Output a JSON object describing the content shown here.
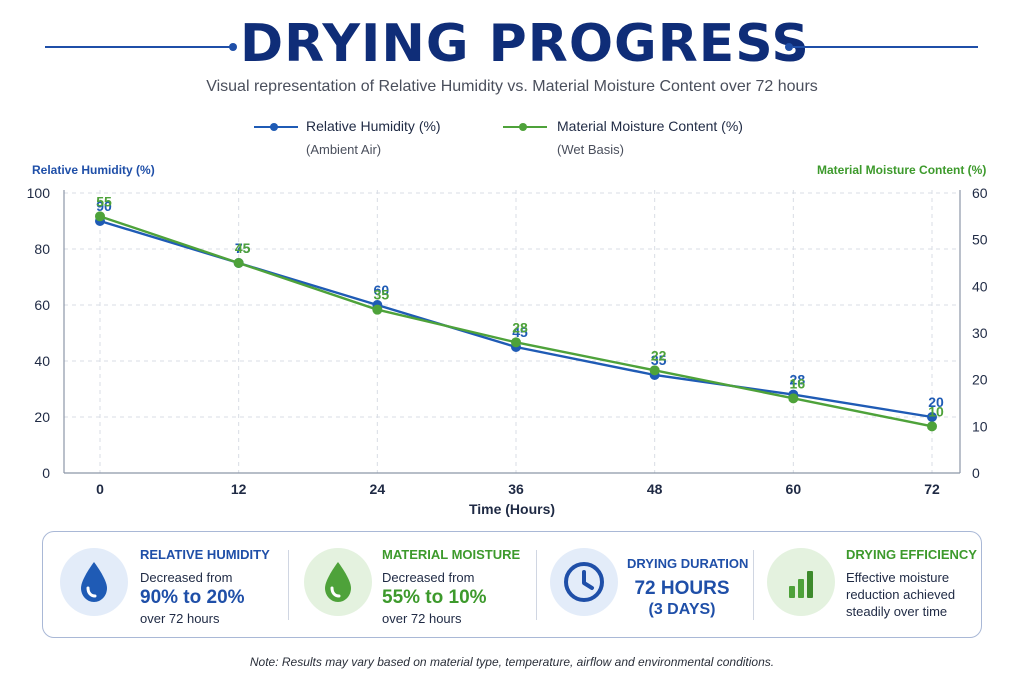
{
  "header": {
    "title": "DRYING PROGRESS",
    "subtitle": "Visual representation of Relative Humidity vs. Material Moisture Content over 72 hours"
  },
  "legend": {
    "humidity": {
      "name": "Relative Humidity (%)",
      "sub": "(Ambient Air)"
    },
    "moisture": {
      "name": "Material Moisture Content (%)",
      "sub": "(Wet Basis)"
    }
  },
  "colors": {
    "humidity": "#1f5bb5",
    "moisture": "#4ea23a",
    "title": "#0f2d78"
  },
  "chart_data": {
    "type": "line",
    "title": "DRYING PROGRESS",
    "subtitle": "Visual representation of Relative Humidity vs. Material Moisture Content over 72 hours",
    "xlabel": "Time (Hours)",
    "ylabel_left": "Relative Humidity (%)",
    "ylabel_right": "Material Moisture Content (%)",
    "x": [
      0,
      12,
      24,
      36,
      48,
      60,
      72
    ],
    "x_ticks": [
      "0",
      "12",
      "24",
      "36",
      "48",
      "60",
      "72"
    ],
    "ylim_left": [
      0,
      100
    ],
    "y_ticks_left": [
      "0",
      "20",
      "40",
      "60",
      "80",
      "100"
    ],
    "ylim_right": [
      0,
      60
    ],
    "y_ticks_right": [
      "0",
      "10",
      "20",
      "30",
      "40",
      "50",
      "60"
    ],
    "grid": true,
    "series": [
      {
        "name": "Relative Humidity (%)",
        "axis": "left",
        "values": [
          90,
          75,
          60,
          45,
          35,
          28,
          20
        ],
        "labels": [
          "90",
          "75",
          "60",
          "45",
          "35",
          "28",
          "20"
        ]
      },
      {
        "name": "Material Moisture Content (%)",
        "axis": "right",
        "values": [
          55,
          45,
          35,
          28,
          22,
          16,
          10
        ],
        "labels": [
          "55",
          "45",
          "35",
          "28",
          "22",
          "16",
          "10"
        ]
      }
    ]
  },
  "summary": {
    "humidity": {
      "heading": "RELATIVE HUMIDITY",
      "line1": "Decreased from",
      "big": "90% to 20%",
      "line2": "over 72 hours",
      "icon": "water-drop-icon"
    },
    "moisture": {
      "heading": "MATERIAL MOISTURE",
      "line1": "Decreased from",
      "big": "55% to 10%",
      "line2": "over 72 hours",
      "icon": "leaf-drop-icon"
    },
    "duration": {
      "heading": "DRYING DURATION",
      "big": "72 HOURS",
      "sub": "(3 DAYS)",
      "icon": "clock-icon"
    },
    "efficiency": {
      "heading": "DRYING EFFICIENCY",
      "line1": "Effective moisture",
      "line2": "reduction achieved",
      "line3": "steadily over time",
      "icon": "bar-chart-icon"
    }
  },
  "note": "Note: Results may vary based on material type, temperature, airflow and environmental conditions."
}
